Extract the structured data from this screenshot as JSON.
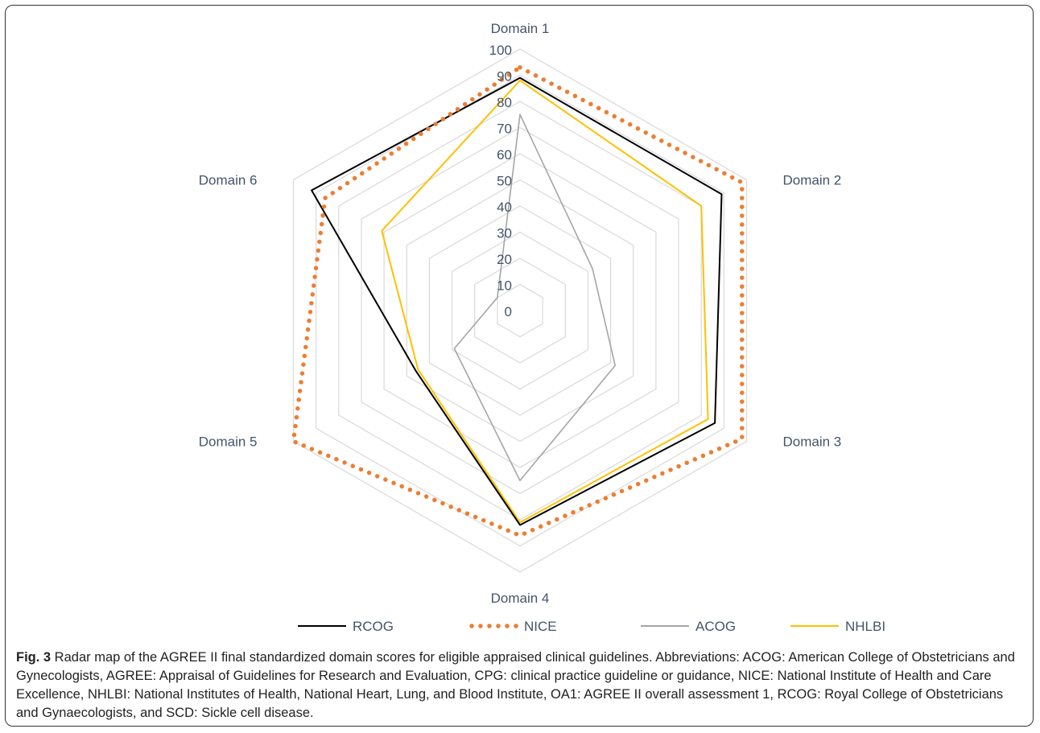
{
  "chart_data": {
    "type": "radar",
    "axes": [
      "Domain 1",
      "Domain 2",
      "Domain 3",
      "Domain 4",
      "Domain 5",
      "Domain 6"
    ],
    "ticks": [
      "0",
      "10",
      "20",
      "30",
      "40",
      "50",
      "60",
      "70",
      "80",
      "90",
      "100"
    ],
    "rlim": [
      0,
      100
    ],
    "series": [
      {
        "name": "RCOG",
        "values": [
          89,
          89,
          86,
          82,
          46,
          92
        ],
        "color": "#000000",
        "style": "solid"
      },
      {
        "name": "NICE",
        "values": [
          93,
          98,
          98,
          86,
          100,
          86
        ],
        "color": "#ED7D31",
        "style": "dotted"
      },
      {
        "name": "ACOG",
        "values": [
          75,
          32,
          42,
          65,
          29,
          10
        ],
        "color": "#A5A5A5",
        "style": "solid"
      },
      {
        "name": "NHLBI",
        "values": [
          88,
          80,
          83,
          81,
          45,
          61
        ],
        "color": "#FFC000",
        "style": "solid"
      }
    ],
    "grid": true,
    "legend_position": "bottom"
  },
  "caption": {
    "label": "Fig. 3",
    "text": " Radar map of the AGREE II final standardized domain scores for eligible appraised clinical guidelines. Abbreviations: ACOG: American College of Obstetricians and Gynecologists, AGREE: Appraisal of Guidelines for Research and Evaluation, CPG: clinical practice guideline or guidance, NICE: National Institute of Health and Care Excellence, NHLBI: National Institutes of Health, National Heart, Lung, and Blood Institute, OA1: AGREE II overall assessment 1, RCOG: Royal College of Obstetricians and Gynaecologists, and SCD: Sickle cell disease."
  }
}
